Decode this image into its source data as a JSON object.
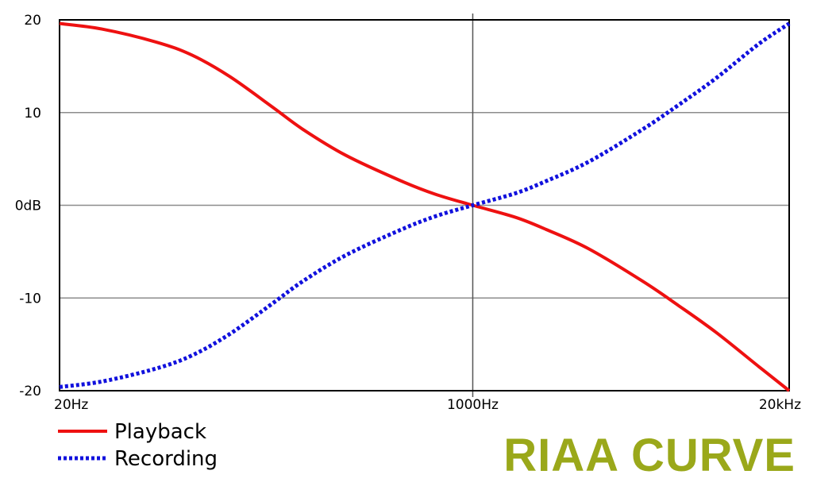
{
  "chart_data": {
    "type": "line",
    "title": "RIAA CURVE",
    "xlabel": "",
    "ylabel": "",
    "x_scale": "log",
    "xlim": [
      20,
      20000
    ],
    "ylim": [
      -20,
      20
    ],
    "grid": true,
    "legend_position": "bottom-left",
    "x_ticks": [
      {
        "value": 20,
        "label": "20Hz"
      },
      {
        "value": 1000,
        "label": "1000Hz"
      },
      {
        "value": 20000,
        "label": "20kHz"
      }
    ],
    "y_ticks": [
      {
        "value": 20,
        "label": "20"
      },
      {
        "value": 10,
        "label": "10"
      },
      {
        "value": 0,
        "label": "0dB"
      },
      {
        "value": -10,
        "label": "-10"
      },
      {
        "value": -20,
        "label": "-20"
      }
    ],
    "x": [
      20,
      30,
      50,
      70,
      100,
      150,
      200,
      300,
      500,
      700,
      1000,
      1500,
      2000,
      3000,
      5000,
      7000,
      10000,
      15000,
      20000
    ],
    "series": [
      {
        "name": "Playback",
        "color": "#ee1111",
        "style": "solid",
        "values": [
          19.6,
          19.0,
          17.6,
          16.2,
          13.9,
          10.6,
          8.2,
          5.4,
          2.7,
          1.2,
          0.0,
          -1.3,
          -2.6,
          -4.7,
          -8.2,
          -10.8,
          -13.7,
          -17.4,
          -20.0
        ]
      },
      {
        "name": "Recording",
        "color": "#1111dd",
        "style": "dotted",
        "values": [
          -19.6,
          -19.0,
          -17.6,
          -16.2,
          -13.9,
          -10.6,
          -8.2,
          -5.4,
          -2.7,
          -1.2,
          0.0,
          1.3,
          2.6,
          4.7,
          8.2,
          10.8,
          13.7,
          17.4,
          19.6
        ]
      }
    ]
  },
  "brand": {
    "color": "#9aa81a"
  }
}
